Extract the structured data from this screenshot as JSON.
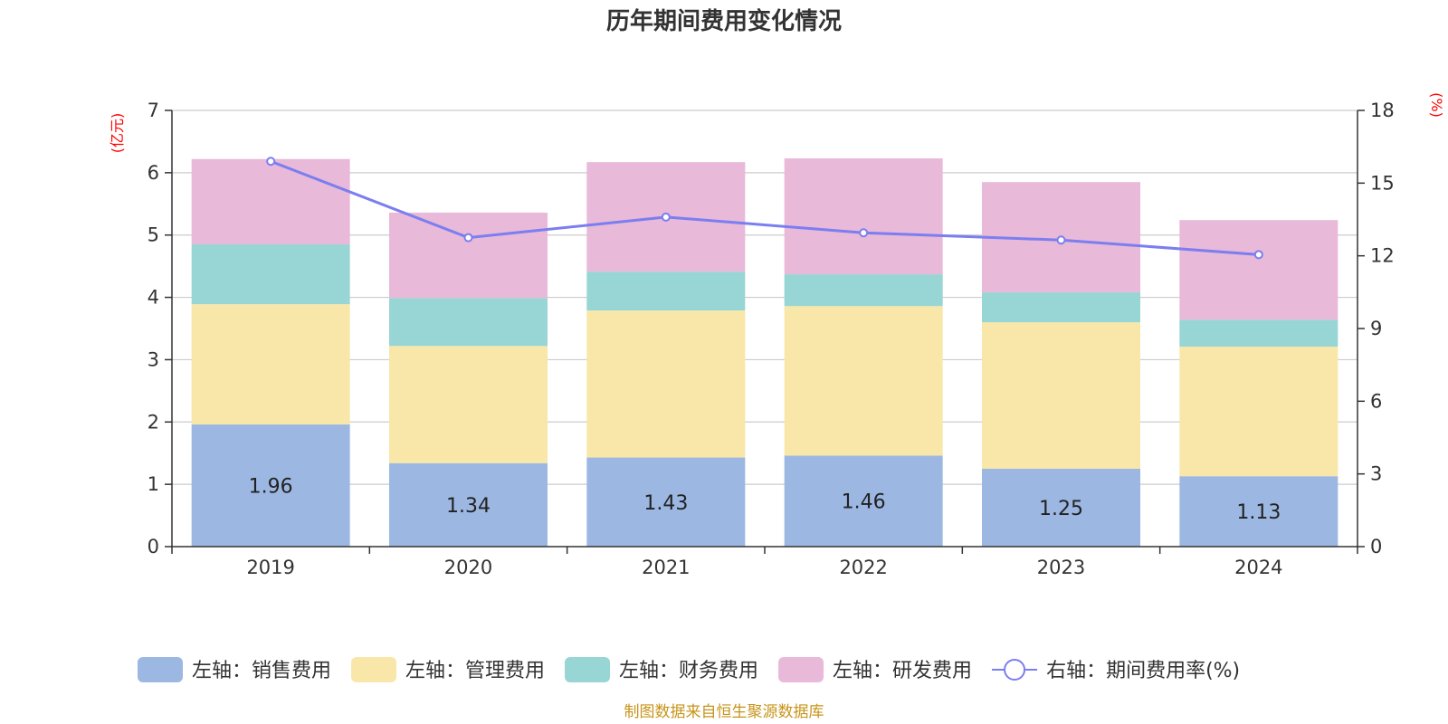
{
  "chart_data": {
    "type": "bar",
    "title": "历年期间费用变化情况",
    "categories": [
      "2019",
      "2020",
      "2021",
      "2022",
      "2023",
      "2024"
    ],
    "left_axis": {
      "unit": "(亿元)",
      "ylim": [
        0,
        7
      ],
      "ticks": [
        "0",
        "1",
        "2",
        "3",
        "4",
        "5",
        "6",
        "7"
      ]
    },
    "right_axis": {
      "unit": "(%)",
      "ylim": [
        0,
        18
      ],
      "ticks": [
        "0",
        "3",
        "6",
        "9",
        "12",
        "15",
        "18"
      ]
    },
    "series": [
      {
        "name": "左轴：销售费用",
        "type": "bar",
        "axis": "left",
        "color": "#9cb8e2",
        "values": [
          1.96,
          1.34,
          1.43,
          1.46,
          1.25,
          1.13
        ],
        "labels": [
          "1.96",
          "1.34",
          "1.43",
          "1.46",
          "1.25",
          "1.13"
        ]
      },
      {
        "name": "左轴：管理费用",
        "type": "bar",
        "axis": "left",
        "color": "#f8e7a8",
        "values": [
          1.93,
          1.88,
          2.36,
          2.4,
          2.35,
          2.08
        ]
      },
      {
        "name": "左轴：财务费用",
        "type": "bar",
        "axis": "left",
        "color": "#98d5d5",
        "values": [
          0.96,
          0.77,
          0.62,
          0.51,
          0.48,
          0.43
        ]
      },
      {
        "name": "左轴：研发费用",
        "type": "bar",
        "axis": "left",
        "color": "#e8b9d8",
        "values": [
          1.37,
          1.37,
          1.76,
          1.86,
          1.77,
          1.6
        ]
      },
      {
        "name": "右轴：期间费用率(%)",
        "type": "line",
        "axis": "right",
        "color": "#7b7ef0",
        "values": [
          15.9,
          12.75,
          13.6,
          12.95,
          12.65,
          12.05
        ]
      }
    ],
    "legend_position": "bottom",
    "grid": true
  },
  "source_note": "制图数据来自恒生聚源数据库"
}
